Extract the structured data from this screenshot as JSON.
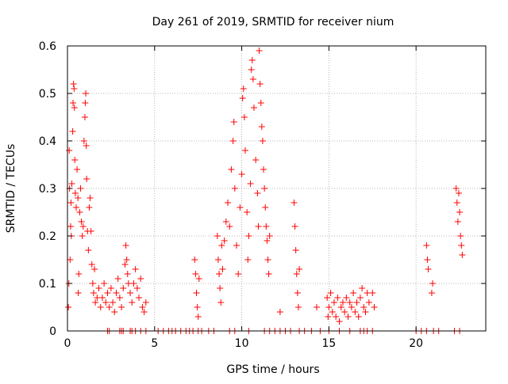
{
  "chart_data": {
    "type": "scatter",
    "title": "Day 261 of 2019, SRMTID for receiver nium",
    "xlabel": "GPS time / hours",
    "ylabel": "SRMTID / TECUs",
    "xlim": [
      0,
      24
    ],
    "ylim": [
      0,
      0.6
    ],
    "grid": true,
    "marker": "+",
    "xticks": [
      0,
      5,
      10,
      15,
      20
    ],
    "yticks": [
      0,
      0.1,
      0.2,
      0.3,
      0.4,
      0.5,
      0.6
    ],
    "ytick_labels": [
      "0",
      "0.1",
      "0.2",
      "0.3",
      "0.4",
      "0.5",
      "0.6"
    ],
    "series": [
      {
        "name": "SRMTID",
        "color": "#ff0000",
        "points": [
          [
            0.05,
            0.05
          ],
          [
            0.08,
            0.1
          ],
          [
            0.1,
            0.38
          ],
          [
            0.12,
            0.3
          ],
          [
            0.15,
            0.15
          ],
          [
            0.18,
            0.22
          ],
          [
            0.2,
            0.27
          ],
          [
            0.22,
            0.2
          ],
          [
            0.25,
            0.31
          ],
          [
            0.3,
            0.42
          ],
          [
            0.32,
            0.48
          ],
          [
            0.35,
            0.52
          ],
          [
            0.38,
            0.51
          ],
          [
            0.4,
            0.47
          ],
          [
            0.42,
            0.36
          ],
          [
            0.45,
            0.29
          ],
          [
            0.5,
            0.26
          ],
          [
            0.55,
            0.34
          ],
          [
            0.6,
            0.28
          ],
          [
            0.62,
            0.08
          ],
          [
            0.65,
            0.12
          ],
          [
            0.7,
            0.25
          ],
          [
            0.75,
            0.3
          ],
          [
            0.8,
            0.23
          ],
          [
            0.85,
            0.2
          ],
          [
            0.9,
            0.22
          ],
          [
            0.95,
            0.4
          ],
          [
            1.0,
            0.45
          ],
          [
            1.02,
            0.48
          ],
          [
            1.05,
            0.5
          ],
          [
            1.08,
            0.39
          ],
          [
            1.1,
            0.32
          ],
          [
            1.15,
            0.21
          ],
          [
            1.2,
            0.17
          ],
          [
            1.25,
            0.26
          ],
          [
            1.3,
            0.28
          ],
          [
            1.35,
            0.21
          ],
          [
            1.4,
            0.14
          ],
          [
            1.45,
            0.1
          ],
          [
            1.5,
            0.08
          ],
          [
            1.55,
            0.13
          ],
          [
            1.6,
            0.06
          ],
          [
            1.7,
            0.07
          ],
          [
            1.8,
            0.09
          ],
          [
            1.9,
            0.05
          ],
          [
            2.0,
            0.07
          ],
          [
            2.1,
            0.1
          ],
          [
            2.2,
            0.06
          ],
          [
            2.3,
            0.08
          ],
          [
            2.4,
            0.05
          ],
          [
            2.5,
            0.09
          ],
          [
            2.6,
            0.06
          ],
          [
            2.7,
            0.04
          ],
          [
            2.8,
            0.08
          ],
          [
            2.9,
            0.11
          ],
          [
            3.0,
            0.07
          ],
          [
            3.1,
            0.05
          ],
          [
            3.2,
            0.09
          ],
          [
            3.3,
            0.14
          ],
          [
            3.35,
            0.18
          ],
          [
            3.4,
            0.15
          ],
          [
            3.45,
            0.12
          ],
          [
            3.5,
            0.1
          ],
          [
            3.6,
            0.08
          ],
          [
            3.7,
            0.06
          ],
          [
            3.8,
            0.1
          ],
          [
            3.9,
            0.13
          ],
          [
            4.0,
            0.09
          ],
          [
            4.1,
            0.07
          ],
          [
            4.2,
            0.11
          ],
          [
            4.3,
            0.05
          ],
          [
            4.4,
            0.04
          ],
          [
            4.5,
            0.06
          ],
          [
            7.3,
            0.15
          ],
          [
            7.35,
            0.12
          ],
          [
            7.4,
            0.08
          ],
          [
            7.45,
            0.05
          ],
          [
            7.5,
            0.03
          ],
          [
            7.55,
            0.11
          ],
          [
            8.6,
            0.2
          ],
          [
            8.65,
            0.15
          ],
          [
            8.7,
            0.12
          ],
          [
            8.75,
            0.09
          ],
          [
            8.8,
            0.06
          ],
          [
            8.85,
            0.18
          ],
          [
            8.9,
            0.13
          ],
          [
            9.0,
            0.19
          ],
          [
            9.1,
            0.23
          ],
          [
            9.2,
            0.27
          ],
          [
            9.3,
            0.22
          ],
          [
            9.4,
            0.34
          ],
          [
            9.5,
            0.4
          ],
          [
            9.55,
            0.44
          ],
          [
            9.6,
            0.3
          ],
          [
            9.7,
            0.18
          ],
          [
            9.8,
            0.12
          ],
          [
            9.9,
            0.26
          ],
          [
            10.0,
            0.33
          ],
          [
            10.05,
            0.49
          ],
          [
            10.1,
            0.51
          ],
          [
            10.15,
            0.45
          ],
          [
            10.2,
            0.38
          ],
          [
            10.3,
            0.25
          ],
          [
            10.35,
            0.15
          ],
          [
            10.4,
            0.2
          ],
          [
            10.5,
            0.31
          ],
          [
            10.55,
            0.55
          ],
          [
            10.6,
            0.57
          ],
          [
            10.65,
            0.53
          ],
          [
            10.7,
            0.47
          ],
          [
            10.8,
            0.36
          ],
          [
            10.9,
            0.29
          ],
          [
            10.95,
            0.22
          ],
          [
            11.0,
            0.59
          ],
          [
            11.05,
            0.52
          ],
          [
            11.1,
            0.48
          ],
          [
            11.15,
            0.43
          ],
          [
            11.2,
            0.4
          ],
          [
            11.25,
            0.34
          ],
          [
            11.3,
            0.3
          ],
          [
            11.35,
            0.26
          ],
          [
            11.4,
            0.22
          ],
          [
            11.45,
            0.19
          ],
          [
            11.5,
            0.15
          ],
          [
            11.55,
            0.12
          ],
          [
            11.6,
            0.2
          ],
          [
            12.2,
            0.04
          ],
          [
            13.0,
            0.27
          ],
          [
            13.05,
            0.22
          ],
          [
            13.1,
            0.17
          ],
          [
            13.15,
            0.12
          ],
          [
            13.2,
            0.08
          ],
          [
            13.25,
            0.05
          ],
          [
            13.3,
            0.13
          ],
          [
            14.3,
            0.05
          ],
          [
            14.9,
            0.07
          ],
          [
            14.95,
            0.03
          ],
          [
            15.0,
            0.05
          ],
          [
            15.1,
            0.08
          ],
          [
            15.2,
            0.04
          ],
          [
            15.3,
            0.06
          ],
          [
            15.4,
            0.03
          ],
          [
            15.5,
            0.07
          ],
          [
            15.6,
            0.02
          ],
          [
            15.7,
            0.05
          ],
          [
            15.8,
            0.06
          ],
          [
            15.9,
            0.04
          ],
          [
            16.0,
            0.07
          ],
          [
            16.1,
            0.03
          ],
          [
            16.2,
            0.06
          ],
          [
            16.3,
            0.05
          ],
          [
            16.4,
            0.08
          ],
          [
            16.5,
            0.04
          ],
          [
            16.6,
            0.06
          ],
          [
            16.7,
            0.03
          ],
          [
            16.8,
            0.07
          ],
          [
            16.9,
            0.09
          ],
          [
            17.0,
            0.05
          ],
          [
            17.1,
            0.04
          ],
          [
            17.2,
            0.08
          ],
          [
            17.3,
            0.06
          ],
          [
            17.5,
            0.08
          ],
          [
            17.6,
            0.05
          ],
          [
            20.6,
            0.18
          ],
          [
            20.65,
            0.15
          ],
          [
            20.7,
            0.13
          ],
          [
            20.9,
            0.08
          ],
          [
            20.95,
            0.1
          ],
          [
            22.3,
            0.3
          ],
          [
            22.35,
            0.27
          ],
          [
            22.4,
            0.23
          ],
          [
            22.45,
            0.29
          ],
          [
            22.5,
            0.25
          ],
          [
            22.55,
            0.2
          ],
          [
            22.6,
            0.18
          ],
          [
            22.65,
            0.16
          ]
        ]
      }
    ],
    "baseline_points_x": [
      2.3,
      2.4,
      3.0,
      3.1,
      3.2,
      3.6,
      3.7,
      3.9,
      4.2,
      4.5,
      5.2,
      5.5,
      5.8,
      6.0,
      6.2,
      6.5,
      6.8,
      7.0,
      7.2,
      7.5,
      7.7,
      8.1,
      8.4,
      9.3,
      9.6,
      10.4,
      11.3,
      11.6,
      11.9,
      12.2,
      12.5,
      12.8,
      13.3,
      13.6,
      14.0,
      14.5,
      15.0,
      15.6,
      16.2,
      16.8,
      17.0,
      17.2,
      17.5,
      20.0,
      20.3,
      20.6,
      21.0,
      21.3,
      22.2,
      22.5
    ]
  }
}
